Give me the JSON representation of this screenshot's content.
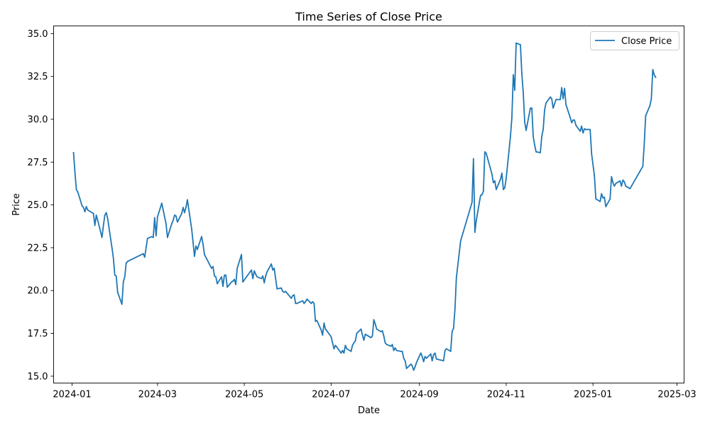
{
  "chart_data": {
    "type": "line",
    "title": "Time Series of Close Price",
    "xlabel": "Date",
    "ylabel": "Price",
    "ylim": [
      14.6,
      35.45
    ],
    "xlim": [
      "2023-12-19",
      "2025-03-06"
    ],
    "x_ticks": [
      "2024-01-01",
      "2024-03-01",
      "2024-05-01",
      "2024-07-01",
      "2024-09-01",
      "2024-11-01",
      "2025-01-01",
      "2025-03-01"
    ],
    "x_tick_labels": [
      "2024-01",
      "2024-03",
      "2024-05",
      "2024-07",
      "2024-09",
      "2024-11",
      "2025-01",
      "2025-03"
    ],
    "y_ticks": [
      15.0,
      17.5,
      20.0,
      22.5,
      25.0,
      27.5,
      30.0,
      32.5,
      35.0
    ],
    "y_tick_labels": [
      "15.0",
      "17.5",
      "20.0",
      "22.5",
      "25.0",
      "27.5",
      "30.0",
      "32.5",
      "35.0"
    ],
    "grid": false,
    "legend_position": "top-right",
    "colors": {
      "series": "#1f77b4"
    },
    "series": [
      {
        "name": "Close Price",
        "x": [
          "2024-01-02",
          "2024-01-03",
          "2024-01-04",
          "2024-01-05",
          "2024-01-08",
          "2024-01-09",
          "2024-01-10",
          "2024-01-11",
          "2024-01-12",
          "2024-01-15",
          "2024-01-16",
          "2024-01-17",
          "2024-01-18",
          "2024-01-19",
          "2024-01-22",
          "2024-01-23",
          "2024-01-24",
          "2024-01-25",
          "2024-01-26",
          "2024-01-29",
          "2024-01-30",
          "2024-01-31",
          "2024-02-01",
          "2024-02-02",
          "2024-02-05",
          "2024-02-06",
          "2024-02-07",
          "2024-02-08",
          "2024-02-09",
          "2024-02-20",
          "2024-02-21",
          "2024-02-22",
          "2024-02-23",
          "2024-02-26",
          "2024-02-27",
          "2024-02-28",
          "2024-02-29",
          "2024-03-01",
          "2024-03-04",
          "2024-03-05",
          "2024-03-06",
          "2024-03-07",
          "2024-03-08",
          "2024-03-11",
          "2024-03-12",
          "2024-03-13",
          "2024-03-14",
          "2024-03-15",
          "2024-03-18",
          "2024-03-19",
          "2024-03-20",
          "2024-03-21",
          "2024-03-22",
          "2024-03-25",
          "2024-03-26",
          "2024-03-27",
          "2024-03-28",
          "2024-03-29",
          "2024-04-01",
          "2024-04-02",
          "2024-04-03",
          "2024-04-08",
          "2024-04-09",
          "2024-04-10",
          "2024-04-11",
          "2024-04-12",
          "2024-04-15",
          "2024-04-16",
          "2024-04-17",
          "2024-04-18",
          "2024-04-19",
          "2024-04-22",
          "2024-04-23",
          "2024-04-24",
          "2024-04-25",
          "2024-04-26",
          "2024-04-29",
          "2024-04-30",
          "2024-05-06",
          "2024-05-07",
          "2024-05-08",
          "2024-05-09",
          "2024-05-10",
          "2024-05-13",
          "2024-05-14",
          "2024-05-15",
          "2024-05-16",
          "2024-05-17",
          "2024-05-20",
          "2024-05-21",
          "2024-05-22",
          "2024-05-23",
          "2024-05-24",
          "2024-05-27",
          "2024-05-28",
          "2024-05-29",
          "2024-05-30",
          "2024-05-31",
          "2024-06-03",
          "2024-06-04",
          "2024-06-05",
          "2024-06-06",
          "2024-06-07",
          "2024-06-11",
          "2024-06-12",
          "2024-06-13",
          "2024-06-14",
          "2024-06-17",
          "2024-06-18",
          "2024-06-19",
          "2024-06-20",
          "2024-06-21",
          "2024-06-24",
          "2024-06-25",
          "2024-06-26",
          "2024-06-27",
          "2024-06-28",
          "2024-07-01",
          "2024-07-02",
          "2024-07-03",
          "2024-07-04",
          "2024-07-05",
          "2024-07-08",
          "2024-07-09",
          "2024-07-10",
          "2024-07-11",
          "2024-07-12",
          "2024-07-15",
          "2024-07-16",
          "2024-07-17",
          "2024-07-18",
          "2024-07-19",
          "2024-07-22",
          "2024-07-23",
          "2024-07-24",
          "2024-07-25",
          "2024-07-26",
          "2024-07-29",
          "2024-07-30",
          "2024-07-31",
          "2024-08-01",
          "2024-08-02",
          "2024-08-05",
          "2024-08-06",
          "2024-08-07",
          "2024-08-08",
          "2024-08-09",
          "2024-08-12",
          "2024-08-13",
          "2024-08-14",
          "2024-08-15",
          "2024-08-16",
          "2024-08-19",
          "2024-08-20",
          "2024-08-21",
          "2024-08-22",
          "2024-08-23",
          "2024-08-26",
          "2024-08-27",
          "2024-08-28",
          "2024-08-29",
          "2024-08-30",
          "2024-09-02",
          "2024-09-03",
          "2024-09-04",
          "2024-09-05",
          "2024-09-06",
          "2024-09-09",
          "2024-09-10",
          "2024-09-11",
          "2024-09-12",
          "2024-09-13",
          "2024-09-18",
          "2024-09-19",
          "2024-09-20",
          "2024-09-23",
          "2024-09-24",
          "2024-09-25",
          "2024-09-26",
          "2024-09-27",
          "2024-09-30",
          "2024-10-08",
          "2024-10-09",
          "2024-10-10",
          "2024-10-11",
          "2024-10-14",
          "2024-10-15",
          "2024-10-16",
          "2024-10-17",
          "2024-10-18",
          "2024-10-21",
          "2024-10-22",
          "2024-10-23",
          "2024-10-24",
          "2024-10-25",
          "2024-10-28",
          "2024-10-29",
          "2024-10-30",
          "2024-10-31",
          "2024-11-01",
          "2024-11-04",
          "2024-11-05",
          "2024-11-06",
          "2024-11-07",
          "2024-11-08",
          "2024-11-11",
          "2024-11-12",
          "2024-11-13",
          "2024-11-14",
          "2024-11-15",
          "2024-11-18",
          "2024-11-19",
          "2024-11-20",
          "2024-11-21",
          "2024-11-22",
          "2024-11-25",
          "2024-11-26",
          "2024-11-27",
          "2024-11-28",
          "2024-11-29",
          "2024-12-02",
          "2024-12-03",
          "2024-12-04",
          "2024-12-05",
          "2024-12-06",
          "2024-12-09",
          "2024-12-10",
          "2024-12-11",
          "2024-12-12",
          "2024-12-13",
          "2024-12-16",
          "2024-12-17",
          "2024-12-18",
          "2024-12-19",
          "2024-12-20",
          "2024-12-23",
          "2024-12-24",
          "2024-12-25",
          "2024-12-26",
          "2024-12-27",
          "2024-12-30",
          "2024-12-31",
          "2025-01-02",
          "2025-01-03",
          "2025-01-06",
          "2025-01-07",
          "2025-01-08",
          "2025-01-09",
          "2025-01-10",
          "2025-01-13",
          "2025-01-14",
          "2025-01-15",
          "2025-01-16",
          "2025-01-17",
          "2025-01-20",
          "2025-01-21",
          "2025-01-22",
          "2025-01-23",
          "2025-01-24",
          "2025-01-27",
          "2025-02-05",
          "2025-02-06",
          "2025-02-07",
          "2025-02-10",
          "2025-02-11",
          "2025-02-12",
          "2025-02-13",
          "2025-02-14"
        ],
        "values": [
          28.05,
          26.9,
          25.9,
          25.75,
          24.95,
          24.85,
          24.6,
          24.9,
          24.7,
          24.55,
          24.5,
          23.8,
          24.4,
          24.1,
          23.1,
          23.8,
          24.4,
          24.55,
          24.2,
          22.5,
          21.9,
          20.9,
          20.85,
          19.9,
          19.2,
          20.5,
          20.8,
          21.6,
          21.7,
          22.15,
          21.95,
          22.5,
          23.05,
          23.15,
          23.1,
          24.25,
          23.2,
          24.3,
          25.1,
          24.7,
          24.3,
          23.9,
          23.1,
          23.9,
          24.1,
          24.4,
          24.35,
          24.0,
          24.5,
          24.85,
          24.55,
          24.85,
          25.3,
          23.6,
          22.8,
          22.0,
          22.6,
          22.4,
          23.15,
          22.7,
          22.1,
          21.3,
          21.4,
          20.85,
          20.8,
          20.4,
          20.8,
          20.25,
          20.9,
          20.9,
          20.2,
          20.5,
          20.55,
          20.65,
          20.35,
          21.3,
          22.1,
          20.5,
          21.2,
          20.7,
          21.15,
          20.95,
          20.8,
          20.7,
          20.85,
          20.45,
          20.85,
          21.1,
          21.55,
          21.2,
          21.3,
          20.7,
          20.1,
          20.15,
          19.95,
          19.9,
          19.95,
          19.85,
          19.55,
          19.7,
          19.75,
          19.25,
          19.25,
          19.4,
          19.25,
          19.35,
          19.5,
          19.25,
          19.35,
          19.25,
          18.2,
          18.25,
          17.7,
          17.4,
          18.1,
          17.75,
          17.65,
          17.3,
          16.95,
          16.6,
          16.8,
          16.7,
          16.35,
          16.5,
          16.35,
          16.8,
          16.6,
          16.45,
          16.8,
          16.95,
          17.05,
          17.5,
          17.75,
          17.4,
          17.1,
          17.45,
          17.4,
          17.25,
          17.35,
          18.3,
          18.05,
          17.75,
          17.6,
          17.65,
          17.35,
          16.95,
          16.85,
          16.75,
          16.85,
          16.5,
          16.65,
          16.5,
          16.45,
          16.45,
          16.05,
          15.9,
          15.45,
          15.7,
          15.6,
          15.35,
          15.55,
          15.8,
          16.35,
          16.15,
          15.85,
          16.15,
          16.05,
          16.3,
          15.9,
          16.25,
          16.35,
          16.0,
          15.9,
          16.5,
          16.6,
          16.45,
          17.6,
          17.8,
          18.9,
          20.75,
          22.9,
          25.15,
          27.7,
          23.4,
          24.1,
          25.55,
          25.6,
          25.8,
          28.1,
          28.0,
          27.1,
          26.8,
          26.3,
          26.4,
          25.9,
          26.5,
          26.85,
          25.9,
          26.0,
          26.55,
          29.0,
          30.1,
          32.6,
          31.7,
          34.45,
          34.35,
          32.65,
          31.55,
          29.85,
          29.35,
          30.65,
          30.65,
          29.0,
          28.5,
          28.1,
          28.05,
          29.0,
          29.4,
          30.55,
          30.95,
          31.3,
          31.2,
          30.65,
          30.9,
          31.15,
          31.15,
          31.85,
          31.2,
          31.8,
          30.85,
          30.1,
          29.8,
          29.95,
          29.95,
          29.65,
          29.3,
          29.6,
          29.2,
          29.45,
          29.4,
          29.4,
          28.0,
          26.7,
          25.35,
          25.2,
          25.65,
          25.4,
          25.45,
          24.9,
          25.35,
          26.65,
          26.3,
          26.1,
          26.25,
          26.4,
          26.1,
          26.45,
          26.35,
          26.1,
          25.95,
          27.25,
          28.55,
          30.2,
          30.8,
          31.2,
          32.9,
          32.6,
          32.45
        ]
      }
    ]
  }
}
